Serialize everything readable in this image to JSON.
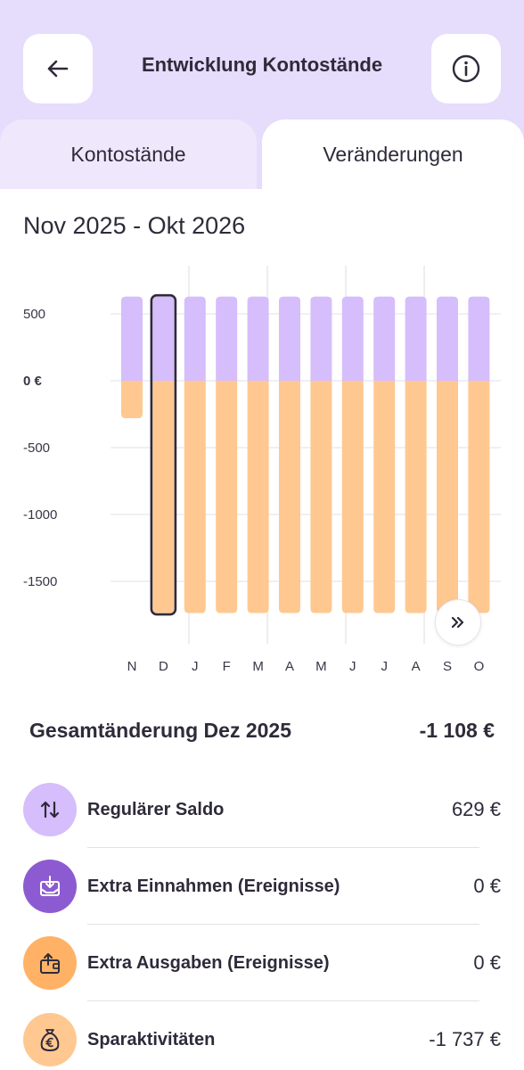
{
  "header": {
    "title": "Entwicklung Kontostände",
    "back_icon": "arrow-left-icon",
    "info_icon": "info-icon"
  },
  "tabs": [
    {
      "label": "Kontostände",
      "active": false
    },
    {
      "label": "Veränderungen",
      "active": true
    }
  ],
  "period": "Nov 2025 - Okt 2026",
  "chart_data": {
    "type": "bar",
    "stacked": true,
    "categories": [
      "N",
      "D",
      "J",
      "F",
      "M",
      "A",
      "M",
      "J",
      "J",
      "A",
      "S",
      "O"
    ],
    "series": [
      {
        "color": "#d6bdfb",
        "values": [
          629,
          629,
          629,
          629,
          629,
          629,
          629,
          629,
          629,
          629,
          629,
          629
        ]
      },
      {
        "color": "#ffc891",
        "values": [
          -280,
          -1737,
          -1737,
          -1737,
          -1737,
          -1737,
          -1737,
          -1737,
          -1737,
          -1737,
          -1737,
          -1737
        ]
      }
    ],
    "ytick_labels": [
      "500",
      "0 €",
      "-500",
      "-1000",
      "-1500"
    ],
    "yticks": [
      500,
      0,
      -500,
      -1000,
      -1500
    ],
    "ylim": [
      -1800,
      750
    ],
    "selected_index": 1,
    "grid": true
  },
  "more_icon": "double-chevron-right-icon",
  "summary": {
    "label": "Gesamtänderung Dez 2025",
    "value": "-1 108 €"
  },
  "items": [
    {
      "label": "Regulärer Saldo",
      "value": "629 €",
      "icon": "arrows-up-down-icon",
      "color": "#d6bdfb"
    },
    {
      "label": "Extra Einnahmen (Ereignisse)",
      "value": "0 €",
      "icon": "wallet-in-icon",
      "color": "#8d5bd1"
    },
    {
      "label": "Extra Ausgaben (Ereignisse)",
      "value": "0 €",
      "icon": "wallet-out-icon",
      "color": "#ffb266"
    },
    {
      "label": "Sparaktivitäten",
      "value": "-1 737 €",
      "icon": "money-bag-icon",
      "color": "#ffc891"
    }
  ]
}
